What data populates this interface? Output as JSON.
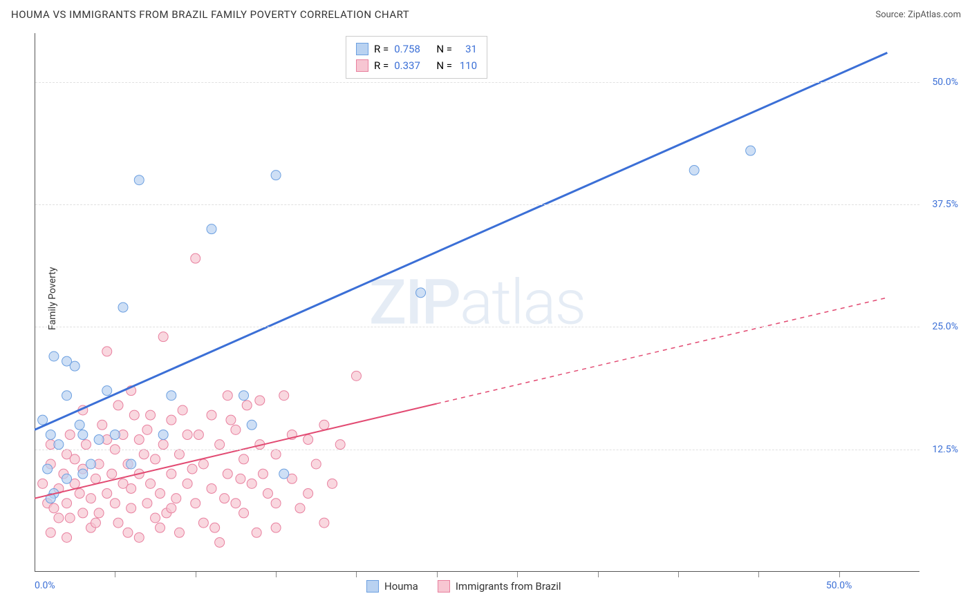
{
  "header": {
    "title": "HOUMA VS IMMIGRANTS FROM BRAZIL FAMILY POVERTY CORRELATION CHART",
    "source_prefix": "Source: ",
    "source_name": "ZipAtlas.com"
  },
  "axes": {
    "y_label": "Family Poverty",
    "x_min": 0,
    "x_max": 55,
    "y_min": 0,
    "y_max": 55,
    "y_ticks": [
      {
        "value": 12.5,
        "label": "12.5%"
      },
      {
        "value": 25.0,
        "label": "25.0%"
      },
      {
        "value": 37.5,
        "label": "37.5%"
      },
      {
        "value": 50.0,
        "label": "50.0%"
      }
    ],
    "x_ticks_minor": [
      5,
      10,
      15,
      20,
      25,
      30,
      35,
      40,
      45,
      50
    ],
    "x_tick_labels": [
      {
        "value": 0,
        "label": "0.0%"
      },
      {
        "value": 50,
        "label": "50.0%"
      }
    ]
  },
  "watermark": {
    "zip": "ZIP",
    "atlas": "atlas"
  },
  "series": {
    "houma": {
      "label": "Houma",
      "color_fill": "#b9d2f1",
      "color_stroke": "#6b9fe0",
      "line_color": "#3b6fd6",
      "line_width": 3,
      "marker_r": 7,
      "R": "0.758",
      "N": "31",
      "trend": {
        "x1": 0,
        "y1": 14.5,
        "x2": 53,
        "y2": 53,
        "solid_until_x": 53
      },
      "points": [
        [
          0.5,
          15.5
        ],
        [
          1.0,
          14.0
        ],
        [
          1.2,
          22.0
        ],
        [
          2.0,
          21.5
        ],
        [
          2.5,
          21.0
        ],
        [
          2.8,
          15.0
        ],
        [
          0.8,
          10.5
        ],
        [
          1.5,
          13.0
        ],
        [
          2.0,
          18.0
        ],
        [
          3.0,
          14.0
        ],
        [
          3.5,
          11.0
        ],
        [
          1.2,
          8.0
        ],
        [
          4.0,
          13.5
        ],
        [
          4.5,
          18.5
        ],
        [
          5.0,
          14.0
        ],
        [
          6.0,
          11.0
        ],
        [
          5.5,
          27.0
        ],
        [
          6.5,
          40.0
        ],
        [
          8.0,
          14.0
        ],
        [
          8.5,
          18.0
        ],
        [
          11.0,
          35.0
        ],
        [
          13.0,
          18.0
        ],
        [
          13.5,
          15.0
        ],
        [
          15.0,
          40.5
        ],
        [
          15.5,
          10.0
        ],
        [
          24.0,
          28.5
        ],
        [
          41.0,
          41.0
        ],
        [
          44.5,
          43.0
        ],
        [
          1.0,
          7.5
        ],
        [
          2.0,
          9.5
        ],
        [
          3.0,
          10.0
        ]
      ]
    },
    "brazil": {
      "label": "Immigrants from Brazil",
      "color_fill": "#f7c6d2",
      "color_stroke": "#e87f9e",
      "line_color": "#e24a72",
      "line_width": 2,
      "marker_r": 7,
      "R": "0.337",
      "N": "110",
      "trend": {
        "x1": 0,
        "y1": 7.5,
        "x2": 53,
        "y2": 28.0,
        "solid_until_x": 25
      },
      "points": [
        [
          0.5,
          9.0
        ],
        [
          0.8,
          7.0
        ],
        [
          1.0,
          11.0
        ],
        [
          1.2,
          6.5
        ],
        [
          1.5,
          8.5
        ],
        [
          1.8,
          10.0
        ],
        [
          2.0,
          7.0
        ],
        [
          2.0,
          12.0
        ],
        [
          2.2,
          5.5
        ],
        [
          2.5,
          9.0
        ],
        [
          2.5,
          11.5
        ],
        [
          2.8,
          8.0
        ],
        [
          3.0,
          6.0
        ],
        [
          3.0,
          10.5
        ],
        [
          3.2,
          13.0
        ],
        [
          3.5,
          7.5
        ],
        [
          3.5,
          4.5
        ],
        [
          3.8,
          9.5
        ],
        [
          4.0,
          11.0
        ],
        [
          4.0,
          6.0
        ],
        [
          4.2,
          15.0
        ],
        [
          4.5,
          8.0
        ],
        [
          4.5,
          22.5
        ],
        [
          4.8,
          10.0
        ],
        [
          5.0,
          7.0
        ],
        [
          5.0,
          12.5
        ],
        [
          5.2,
          5.0
        ],
        [
          5.5,
          9.0
        ],
        [
          5.5,
          14.0
        ],
        [
          5.8,
          11.0
        ],
        [
          6.0,
          6.5
        ],
        [
          6.0,
          8.5
        ],
        [
          6.2,
          16.0
        ],
        [
          6.5,
          10.0
        ],
        [
          6.5,
          3.5
        ],
        [
          6.8,
          12.0
        ],
        [
          7.0,
          7.0
        ],
        [
          7.0,
          14.5
        ],
        [
          7.2,
          9.0
        ],
        [
          7.5,
          5.5
        ],
        [
          7.5,
          11.5
        ],
        [
          7.8,
          8.0
        ],
        [
          8.0,
          13.0
        ],
        [
          8.0,
          24.0
        ],
        [
          8.2,
          6.0
        ],
        [
          8.5,
          10.0
        ],
        [
          8.5,
          15.5
        ],
        [
          8.8,
          7.5
        ],
        [
          9.0,
          4.0
        ],
        [
          9.0,
          12.0
        ],
        [
          9.5,
          9.0
        ],
        [
          9.5,
          14.0
        ],
        [
          10.0,
          32.0
        ],
        [
          10.0,
          7.0
        ],
        [
          10.5,
          11.0
        ],
        [
          10.5,
          5.0
        ],
        [
          11.0,
          16.0
        ],
        [
          11.0,
          8.5
        ],
        [
          11.5,
          13.0
        ],
        [
          11.5,
          3.0
        ],
        [
          12.0,
          10.0
        ],
        [
          12.0,
          18.0
        ],
        [
          12.5,
          7.0
        ],
        [
          12.5,
          14.5
        ],
        [
          13.0,
          6.0
        ],
        [
          13.0,
          11.5
        ],
        [
          13.5,
          9.0
        ],
        [
          14.0,
          13.0
        ],
        [
          14.0,
          17.5
        ],
        [
          14.5,
          8.0
        ],
        [
          15.0,
          4.5
        ],
        [
          15.0,
          12.0
        ],
        [
          15.5,
          18.0
        ],
        [
          16.0,
          9.5
        ],
        [
          16.0,
          14.0
        ],
        [
          16.5,
          6.5
        ],
        [
          17.0,
          13.5
        ],
        [
          17.0,
          8.0
        ],
        [
          17.5,
          11.0
        ],
        [
          18.0,
          15.0
        ],
        [
          18.0,
          5.0
        ],
        [
          18.5,
          9.0
        ],
        [
          19.0,
          13.0
        ],
        [
          20.0,
          20.0
        ],
        [
          1.0,
          4.0
        ],
        [
          1.5,
          5.5
        ],
        [
          2.2,
          14.0
        ],
        [
          3.0,
          16.5
        ],
        [
          3.8,
          5.0
        ],
        [
          4.5,
          13.5
        ],
        [
          5.2,
          17.0
        ],
        [
          5.8,
          4.0
        ],
        [
          6.5,
          13.5
        ],
        [
          7.2,
          16.0
        ],
        [
          7.8,
          4.5
        ],
        [
          8.5,
          6.5
        ],
        [
          9.2,
          16.5
        ],
        [
          9.8,
          10.5
        ],
        [
          10.2,
          14.0
        ],
        [
          11.2,
          4.5
        ],
        [
          11.8,
          7.5
        ],
        [
          12.2,
          15.5
        ],
        [
          12.8,
          9.5
        ],
        [
          13.2,
          17.0
        ],
        [
          13.8,
          4.0
        ],
        [
          14.2,
          10.0
        ],
        [
          15.0,
          7.0
        ],
        [
          6.0,
          18.5
        ],
        [
          2.0,
          3.5
        ],
        [
          1.0,
          13.0
        ]
      ]
    }
  },
  "legend_stats_labels": {
    "R": "R =",
    "N": "N ="
  },
  "colors": {
    "tick_text": "#3b6fd6",
    "grid": "#e0e0e0"
  }
}
